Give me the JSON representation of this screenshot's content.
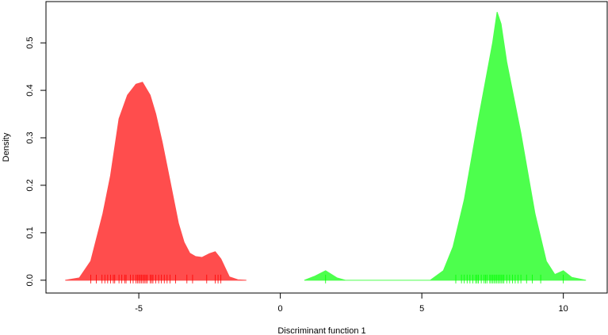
{
  "chart_data": {
    "type": "area",
    "xlabel": "Discriminant function 1",
    "ylabel": "Density",
    "xlim": [
      -8.28,
      11.55
    ],
    "ylim": [
      -0.027,
      0.587
    ],
    "xticks": [
      -5,
      0,
      5,
      10
    ],
    "yticks": [
      {
        "value": 0,
        "label": "0.0"
      },
      0.1,
      0.2,
      0.3,
      0.4,
      0.5
    ],
    "series": [
      {
        "color": "#ff4d4d",
        "rug_color": "#ff0000",
        "x": [
          -7.6,
          -7.1,
          -6.7,
          -6.27,
          -6.0,
          -5.7,
          -5.4,
          -5.1,
          -4.87,
          -4.6,
          -4.4,
          -4.17,
          -3.9,
          -3.6,
          -3.4,
          -3.2,
          -3.0,
          -2.77,
          -2.5,
          -2.3,
          -2.1,
          -1.8,
          -1.5,
          -1.2
        ],
        "values": [
          0.0,
          0.005,
          0.04,
          0.14,
          0.22,
          0.34,
          0.39,
          0.413,
          0.417,
          0.39,
          0.35,
          0.29,
          0.21,
          0.12,
          0.08,
          0.057,
          0.05,
          0.048,
          0.056,
          0.06,
          0.045,
          0.007,
          0.001,
          0.0
        ],
        "rug": [
          -6.7,
          -6.5,
          -6.3,
          -6.2,
          -6.1,
          -6.0,
          -5.9,
          -5.85,
          -5.7,
          -5.6,
          -5.5,
          -5.45,
          -5.3,
          -5.2,
          -5.1,
          -5.05,
          -5.0,
          -4.95,
          -4.9,
          -4.85,
          -4.8,
          -4.75,
          -4.7,
          -4.6,
          -4.55,
          -4.5,
          -4.4,
          -4.3,
          -4.2,
          -4.1,
          -4.0,
          -3.9,
          -3.7,
          -3.3,
          -3.1,
          -2.6,
          -2.3,
          -2.2,
          -2.1
        ]
      },
      {
        "color": "#4dff4d",
        "rug_color": "#00ff00",
        "x": [
          0.85,
          1.2,
          1.6,
          2.0,
          2.3,
          5.3,
          5.76,
          6.1,
          6.5,
          7.0,
          7.5,
          7.66,
          7.8,
          8.0,
          8.5,
          9.0,
          9.4,
          9.7,
          10.0,
          10.3,
          10.8
        ],
        "values": [
          0.0,
          0.008,
          0.02,
          0.005,
          0.0,
          0.0,
          0.02,
          0.07,
          0.17,
          0.34,
          0.5,
          0.565,
          0.54,
          0.46,
          0.31,
          0.14,
          0.04,
          0.012,
          0.02,
          0.006,
          0.0
        ],
        "rug": [
          1.6,
          6.2,
          6.4,
          6.5,
          6.6,
          6.7,
          6.8,
          6.9,
          6.95,
          7.0,
          7.1,
          7.2,
          7.25,
          7.3,
          7.4,
          7.45,
          7.5,
          7.55,
          7.6,
          7.65,
          7.7,
          7.75,
          7.8,
          7.85,
          7.9,
          8.0,
          8.1,
          8.2,
          8.3,
          8.4,
          8.5,
          8.7,
          8.9,
          9.2,
          10.0
        ]
      }
    ]
  }
}
